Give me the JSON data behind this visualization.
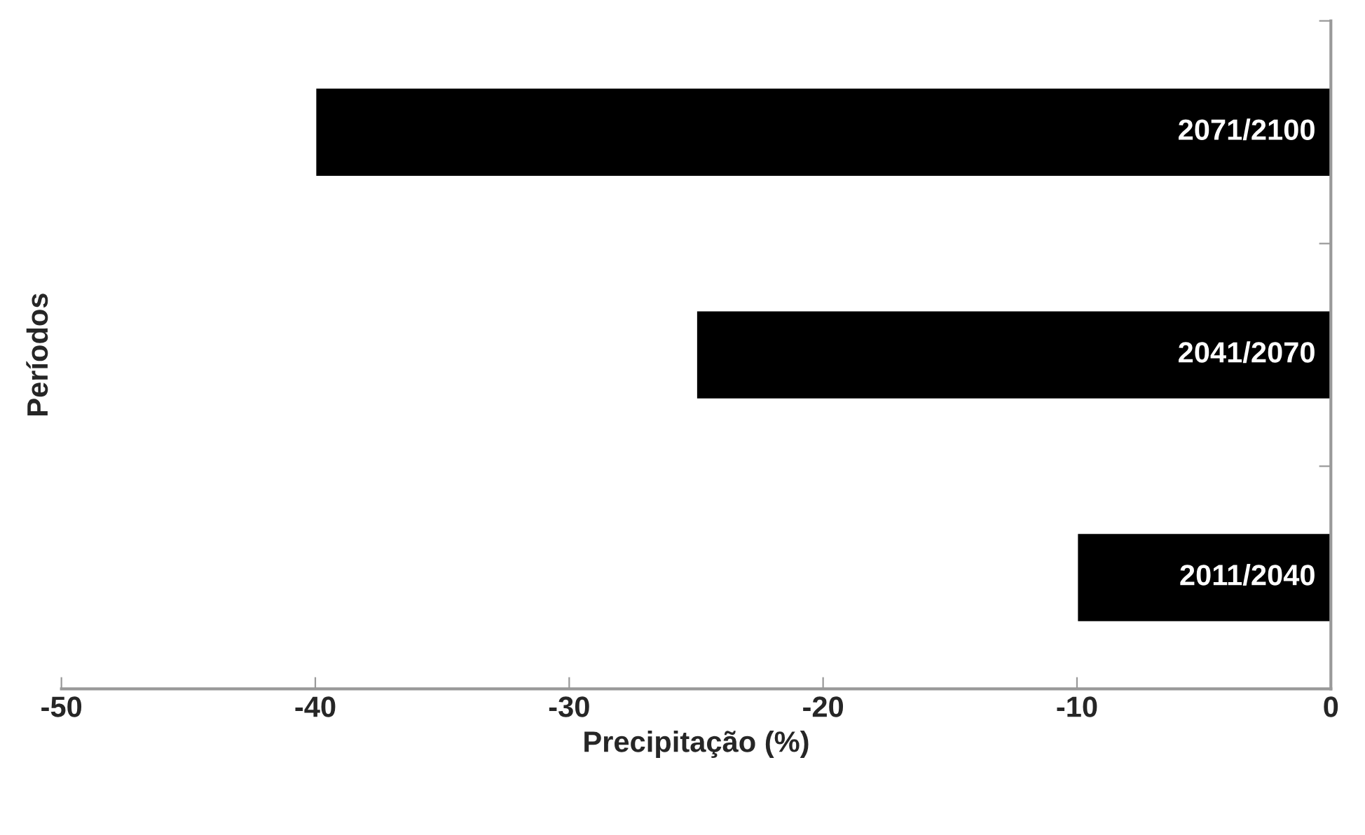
{
  "chart_data": {
    "type": "bar",
    "orientation": "horizontal",
    "categories": [
      "2071/2100",
      "2041/2070",
      "2011/2040"
    ],
    "values": [
      -40,
      -25,
      -10
    ],
    "color": "#000000",
    "xlabel": "Precipitação (%)",
    "ylabel": "Períodos",
    "xlim": [
      -50,
      0
    ],
    "xticks": [
      -50,
      -40,
      -30,
      -20,
      -10,
      0
    ]
  }
}
